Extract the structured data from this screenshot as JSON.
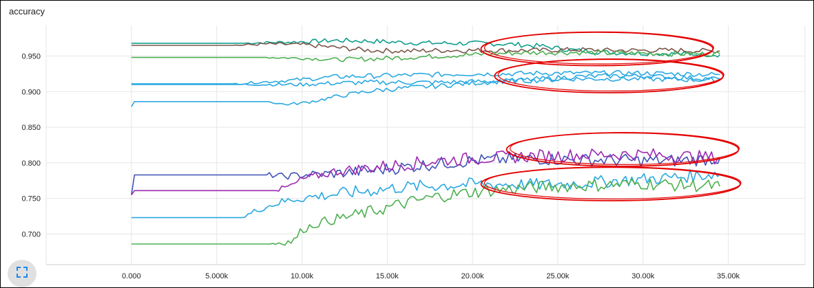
{
  "chart": {
    "title": "accuracy",
    "expand_button_icon": "fullscreen-icon"
  },
  "chart_data": {
    "type": "line",
    "title": "accuracy",
    "xlabel": "",
    "ylabel": "",
    "xlim": [
      -5000,
      39500
    ],
    "ylim": [
      0.657,
      0.993
    ],
    "grid": true,
    "xticks": [
      0,
      5000,
      10000,
      15000,
      20000,
      25000,
      30000,
      35000
    ],
    "xtick_labels": [
      "0.000",
      "5.000k",
      "10.00k",
      "15.00k",
      "20.00k",
      "25.00k",
      "30.00k",
      "35.00k"
    ],
    "yticks": [
      0.7,
      0.75,
      0.8,
      0.85,
      0.9,
      0.95
    ],
    "ytick_labels": [
      "0.700",
      "0.750",
      "0.800",
      "0.850",
      "0.900",
      "0.950"
    ],
    "series": [
      {
        "color": "#0f9d8c",
        "x": [
          0,
          6500,
          8000,
          10000,
          12000,
          14000,
          16000,
          18000,
          20000,
          22000,
          24000,
          26000,
          28000,
          30000,
          32000,
          34500
        ],
        "y": [
          0.968,
          0.968,
          0.969,
          0.97,
          0.972,
          0.971,
          0.969,
          0.968,
          0.968,
          0.967,
          0.964,
          0.958,
          0.955,
          0.954,
          0.953,
          0.952
        ]
      },
      {
        "color": "#795548",
        "x": [
          0,
          6000,
          8000,
          10000,
          12000,
          14000,
          16000,
          18000,
          20000,
          22000,
          24000,
          26000,
          28000,
          30000,
          32000,
          34500
        ],
        "y": [
          0.965,
          0.965,
          0.967,
          0.966,
          0.962,
          0.958,
          0.957,
          0.958,
          0.958,
          0.958,
          0.958,
          0.959,
          0.958,
          0.958,
          0.958,
          0.957
        ]
      },
      {
        "color": "#4caf50",
        "x": [
          0,
          8000,
          10000,
          12000,
          14000,
          16000,
          18000,
          20000,
          22000,
          24000,
          26000,
          28000,
          30000,
          32000,
          34500
        ],
        "y": [
          0.948,
          0.948,
          0.947,
          0.945,
          0.946,
          0.948,
          0.95,
          0.952,
          0.954,
          0.955,
          0.955,
          0.954,
          0.954,
          0.953,
          0.953
        ]
      },
      {
        "color": "#29a8e0",
        "x": [
          0,
          6000,
          8000,
          10000,
          12000,
          14000,
          16000,
          18000,
          20000,
          22000,
          24000,
          26000,
          28000,
          30000,
          32000,
          34500
        ],
        "y": [
          0.911,
          0.911,
          0.914,
          0.917,
          0.921,
          0.922,
          0.923,
          0.924,
          0.925,
          0.925,
          0.926,
          0.926,
          0.926,
          0.926,
          0.925,
          0.924
        ]
      },
      {
        "color": "#29a8e0",
        "x": [
          0,
          6500,
          8000,
          10000,
          12000,
          14000,
          16000,
          18000,
          20000,
          22000,
          24000,
          26000,
          28000,
          30000,
          32000,
          34500
        ],
        "y": [
          0.91,
          0.91,
          0.91,
          0.91,
          0.912,
          0.913,
          0.913,
          0.913,
          0.914,
          0.915,
          0.916,
          0.918,
          0.918,
          0.918,
          0.917,
          0.916
        ]
      },
      {
        "color": "#29a8e0",
        "x": [
          0,
          150,
          8000,
          9000,
          10000,
          11000,
          12000,
          13000,
          14000,
          16000,
          18000,
          20000,
          22000,
          24000,
          26000,
          28000,
          30000,
          32000,
          34500
        ],
        "y": [
          0.879,
          0.886,
          0.886,
          0.882,
          0.884,
          0.888,
          0.893,
          0.897,
          0.901,
          0.905,
          0.908,
          0.912,
          0.915,
          0.918,
          0.921,
          0.922,
          0.922,
          0.92,
          0.918
        ]
      },
      {
        "color": "#3f51b5",
        "x": [
          0,
          150,
          8000,
          9000,
          10000,
          12000,
          14000,
          16000,
          18000,
          20000,
          22000,
          24000,
          26000,
          28000,
          30000,
          32000,
          34500
        ],
        "y": [
          0.755,
          0.783,
          0.783,
          0.781,
          0.783,
          0.785,
          0.789,
          0.794,
          0.799,
          0.803,
          0.805,
          0.806,
          0.804,
          0.804,
          0.803,
          0.803,
          0.806
        ]
      },
      {
        "color": "#9c27b0",
        "x": [
          0,
          150,
          8500,
          9500,
          10000,
          12000,
          14000,
          16000,
          18000,
          20000,
          22000,
          24000,
          26000,
          28000,
          30000,
          32000,
          34500
        ],
        "y": [
          0.755,
          0.761,
          0.761,
          0.769,
          0.777,
          0.788,
          0.793,
          0.798,
          0.803,
          0.806,
          0.808,
          0.81,
          0.811,
          0.812,
          0.812,
          0.81,
          0.807
        ]
      },
      {
        "color": "#29a8e0",
        "x": [
          0,
          6500,
          7500,
          8500,
          9500,
          10500,
          12000,
          14000,
          16000,
          18000,
          20000,
          22000,
          24000,
          26000,
          28000,
          30000,
          32000,
          34500
        ],
        "y": [
          0.723,
          0.723,
          0.735,
          0.743,
          0.749,
          0.752,
          0.756,
          0.761,
          0.766,
          0.768,
          0.77,
          0.77,
          0.769,
          0.771,
          0.774,
          0.777,
          0.78,
          0.785
        ]
      },
      {
        "color": "#4caf50",
        "x": [
          0,
          8000,
          9500,
          10000,
          11000,
          12000,
          14000,
          16000,
          18000,
          20000,
          22000,
          24000,
          26000,
          28000,
          30000,
          32000,
          34500
        ],
        "y": [
          0.686,
          0.686,
          0.69,
          0.706,
          0.716,
          0.721,
          0.731,
          0.743,
          0.753,
          0.759,
          0.763,
          0.766,
          0.768,
          0.769,
          0.771,
          0.769,
          0.767
        ]
      }
    ],
    "annotations": [
      {
        "shape": "ellipse",
        "color": "#e30000",
        "cx": 27300,
        "cy": 0.96,
        "rx": 6800,
        "ry": 0.0235
      },
      {
        "shape": "ellipse",
        "color": "#e30000",
        "cx": 28000,
        "cy": 0.922,
        "rx": 6700,
        "ry": 0.0235
      },
      {
        "shape": "ellipse",
        "color": "#e30000",
        "cx": 28800,
        "cy": 0.8187,
        "rx": 6800,
        "ry": 0.0235
      },
      {
        "shape": "ellipse",
        "color": "#e30000",
        "cx": 28100,
        "cy": 0.7703,
        "rx": 7600,
        "ry": 0.0235
      }
    ]
  }
}
